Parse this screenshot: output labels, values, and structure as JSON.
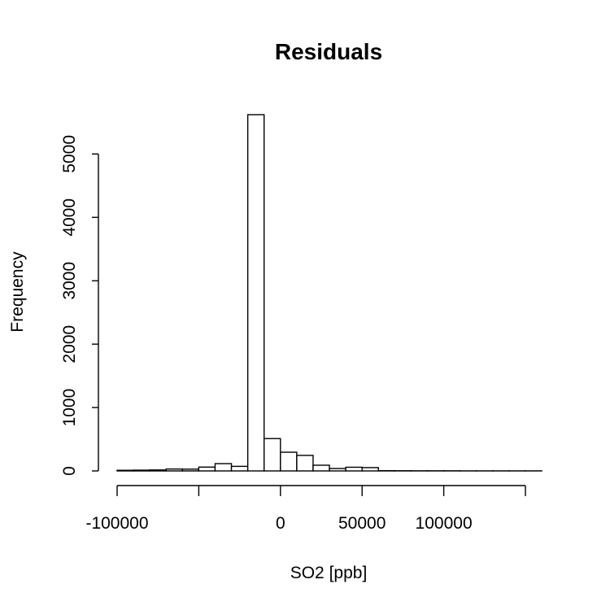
{
  "chart_data": {
    "type": "bar",
    "title": "Residuals",
    "xlabel": "SO2 [ppb]",
    "ylabel": "Frequency",
    "bin_width": 10000,
    "bin_edges_start": -100000,
    "counts": [
      10,
      12,
      15,
      30,
      28,
      60,
      115,
      72,
      5620,
      510,
      295,
      245,
      90,
      38,
      58,
      52,
      4,
      3,
      2,
      2,
      2,
      1,
      1,
      1,
      1,
      1
    ],
    "xlim": [
      -100000,
      150000
    ],
    "ylim": [
      0,
      5620
    ],
    "x_ticks": [
      -100000,
      -50000,
      0,
      50000,
      100000,
      150000
    ],
    "x_tick_labels": [
      "-100000",
      "",
      "0",
      "50000",
      "100000",
      ""
    ],
    "y_ticks": [
      0,
      1000,
      2000,
      3000,
      4000,
      5000
    ],
    "y_tick_labels": [
      "0",
      "1000",
      "2000",
      "3000",
      "4000",
      "5000"
    ]
  }
}
